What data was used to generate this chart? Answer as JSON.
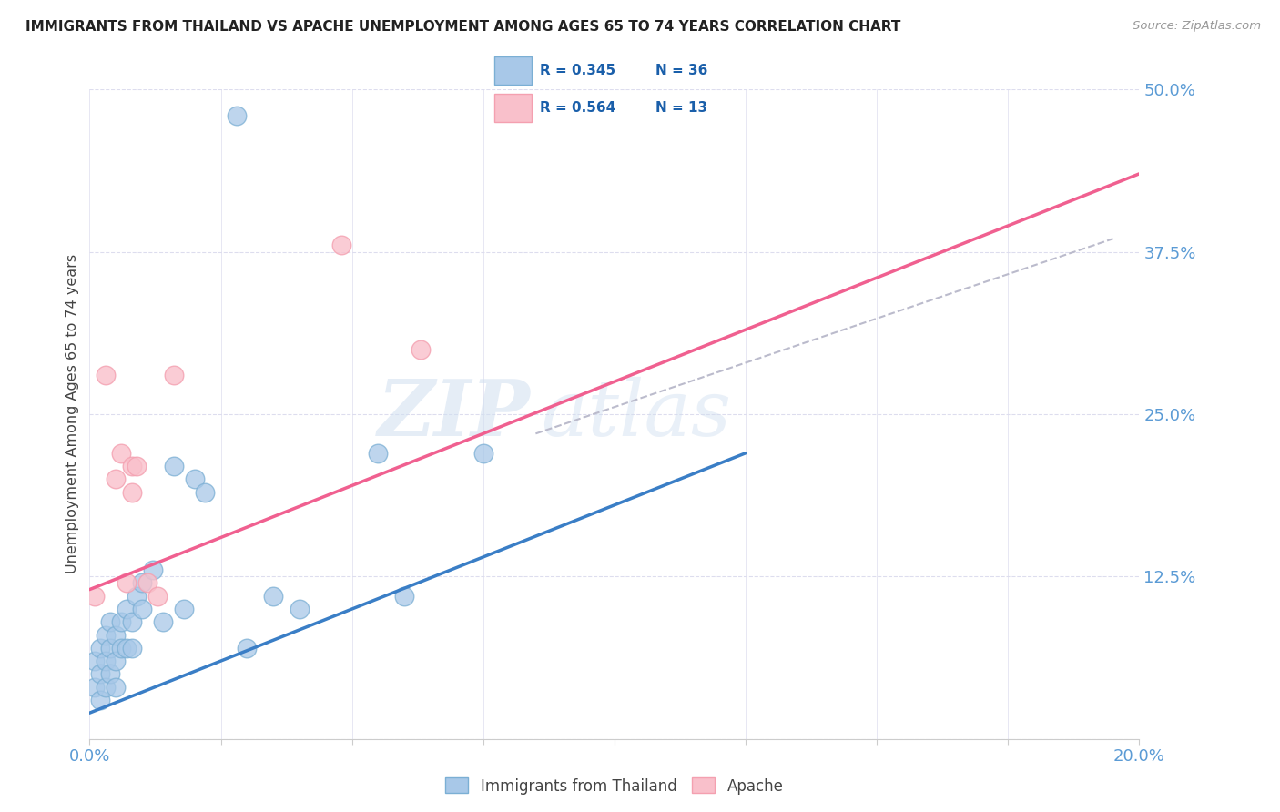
{
  "title": "IMMIGRANTS FROM THAILAND VS APACHE UNEMPLOYMENT AMONG AGES 65 TO 74 YEARS CORRELATION CHART",
  "source": "Source: ZipAtlas.com",
  "ylabel": "Unemployment Among Ages 65 to 74 years",
  "xlim": [
    0.0,
    0.2
  ],
  "ylim": [
    0.0,
    0.5
  ],
  "xticks": [
    0.0,
    0.025,
    0.05,
    0.075,
    0.1,
    0.125,
    0.15,
    0.175,
    0.2
  ],
  "yticks": [
    0.0,
    0.125,
    0.25,
    0.375,
    0.5
  ],
  "legend_r1": "R = 0.345",
  "legend_n1": "N = 36",
  "legend_r2": "R = 0.564",
  "legend_n2": "N = 13",
  "blue_color": "#A8C8E8",
  "pink_color": "#F9C0CB",
  "blue_dot_edge": "#7BAFD4",
  "pink_dot_edge": "#F4A0B0",
  "blue_line_color": "#3A7EC6",
  "pink_line_color": "#F06090",
  "dashed_line_color": "#BBBBCC",
  "background_color": "#FFFFFF",
  "grid_color": "#DDDDEE",
  "title_color": "#222222",
  "axis_label_color": "#444444",
  "tick_label_color": "#5B9BD5",
  "watermark_color": "#D0DFF0",
  "blue_scatter_x": [
    0.001,
    0.001,
    0.002,
    0.002,
    0.002,
    0.003,
    0.003,
    0.003,
    0.004,
    0.004,
    0.004,
    0.005,
    0.005,
    0.005,
    0.006,
    0.006,
    0.007,
    0.007,
    0.008,
    0.008,
    0.009,
    0.01,
    0.01,
    0.012,
    0.014,
    0.016,
    0.018,
    0.02,
    0.022,
    0.03,
    0.035,
    0.04,
    0.055,
    0.06,
    0.075,
    0.028
  ],
  "blue_scatter_y": [
    0.04,
    0.06,
    0.05,
    0.07,
    0.03,
    0.06,
    0.08,
    0.04,
    0.07,
    0.05,
    0.09,
    0.08,
    0.06,
    0.04,
    0.09,
    0.07,
    0.1,
    0.07,
    0.09,
    0.07,
    0.11,
    0.12,
    0.1,
    0.13,
    0.09,
    0.21,
    0.1,
    0.2,
    0.19,
    0.07,
    0.11,
    0.1,
    0.22,
    0.11,
    0.22,
    0.48
  ],
  "pink_scatter_x": [
    0.001,
    0.003,
    0.005,
    0.006,
    0.007,
    0.008,
    0.008,
    0.009,
    0.011,
    0.013,
    0.016,
    0.048,
    0.063
  ],
  "pink_scatter_y": [
    0.11,
    0.28,
    0.2,
    0.22,
    0.12,
    0.19,
    0.21,
    0.21,
    0.12,
    0.11,
    0.28,
    0.38,
    0.3
  ],
  "blue_line_x": [
    0.0,
    0.125
  ],
  "blue_line_y": [
    0.02,
    0.22
  ],
  "pink_line_x": [
    0.0,
    0.2
  ],
  "pink_line_y": [
    0.115,
    0.435
  ],
  "dashed_line_x": [
    0.085,
    0.195
  ],
  "dashed_line_y": [
    0.235,
    0.385
  ]
}
